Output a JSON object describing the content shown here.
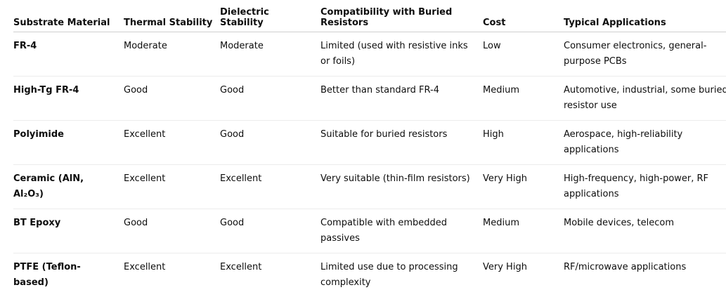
{
  "table": {
    "headers": [
      "Substrate Material",
      "Thermal Stability",
      "Dielectric Stability",
      "Compatibility with Buried Resistors",
      "Cost",
      "Typical Applications"
    ],
    "rows": [
      [
        "FR-4",
        "Moderate",
        "Moderate",
        "Limited (used with resistive inks or foils)",
        "Low",
        "Consumer electronics, general-purpose PCBs"
      ],
      [
        "High-Tg FR-4",
        "Good",
        "Good",
        "Better than standard FR-4",
        "Medium",
        "Automotive, industrial, some buried resistor use"
      ],
      [
        "Polyimide",
        "Excellent",
        "Good",
        "Suitable for buried resistors",
        "High",
        "Aerospace, high-reliability applications"
      ],
      [
        "Ceramic (AlN, Al₂O₃)",
        "Excellent",
        "Excellent",
        "Very suitable (thin-film resistors)",
        "Very High",
        "High-frequency, high-power, RF applications"
      ],
      [
        "BT Epoxy",
        "Good",
        "Good",
        "Compatible with embedded passives",
        "Medium",
        "Mobile devices, telecom"
      ],
      [
        "PTFE (Teflon-based)",
        "Excellent",
        "Excellent",
        "Limited use due to processing complexity",
        "Very High",
        "RF/microwave applications"
      ]
    ]
  }
}
